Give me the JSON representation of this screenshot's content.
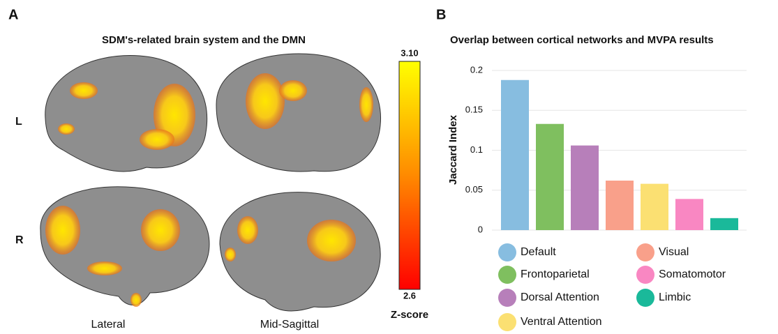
{
  "panel_a": {
    "letter": "A",
    "title": "SDM's-related brain system and the DMN",
    "row_labels": [
      "L",
      "R"
    ],
    "column_labels": [
      "Lateral",
      "Mid-Sagittal"
    ],
    "colorbar": {
      "max_label": "3.10",
      "min_label": "2.6",
      "label": "Z-score"
    }
  },
  "chart_data": {
    "type": "bar",
    "letter": "B",
    "title": "Overlap between cortical networks and MVPA results",
    "y_label": "Jaccard Index",
    "categories": [
      "Default",
      "Frontoparietal",
      "Dorsal Attention",
      "Visual",
      "Ventral Attention",
      "Somatomotor",
      "Limbic"
    ],
    "values": [
      0.188,
      0.133,
      0.106,
      0.062,
      0.058,
      0.039,
      0.015
    ],
    "colors": [
      "#87bde0",
      "#7fbf5f",
      "#b77fba",
      "#f9a08a",
      "#fbe072",
      "#f987c2",
      "#1ab99a"
    ],
    "legend_order": [
      "Default",
      "Frontoparietal",
      "Dorsal Attention",
      "Ventral Attention",
      "Visual",
      "Somatomotor",
      "Limbic"
    ],
    "ylim": [
      0,
      0.2
    ],
    "yticks": [
      0,
      0.05,
      0.1,
      0.15,
      0.2
    ],
    "grid": true
  }
}
